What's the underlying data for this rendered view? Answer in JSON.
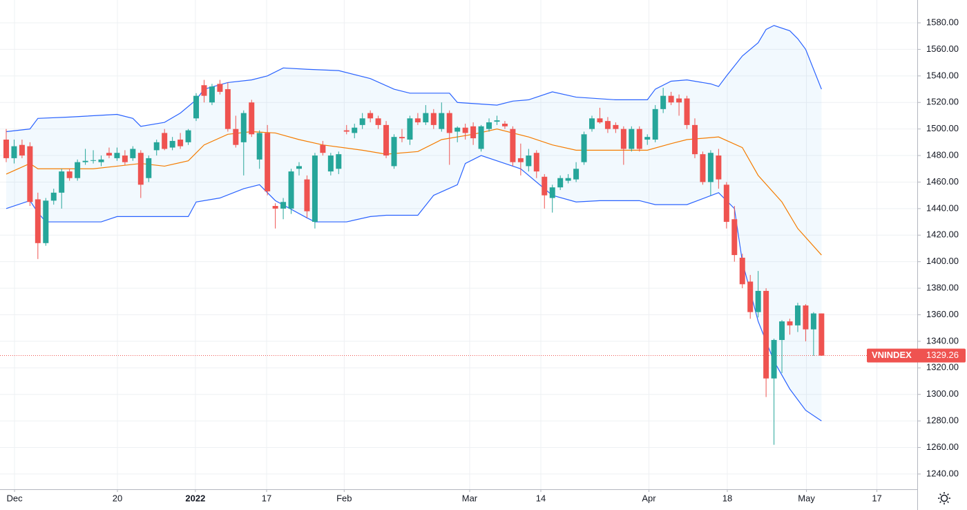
{
  "chart_data": {
    "type": "candlestick",
    "up_color": "#26a69a",
    "down_color": "#ef5350",
    "grid": true,
    "xlim": [
      -0.785,
      115.1
    ],
    "xticks": [
      {
        "value": 1.05,
        "label": "Dec"
      },
      {
        "value": 14.05,
        "label": "20"
      },
      {
        "value": 23.9,
        "label": "2022"
      },
      {
        "value": 32.9,
        "label": "17"
      },
      {
        "value": 42.7,
        "label": "Feb"
      },
      {
        "value": 58.55,
        "label": "Mar"
      },
      {
        "value": 67.54,
        "label": "14"
      },
      {
        "value": 81.2,
        "label": "Apr"
      },
      {
        "value": 91.1,
        "label": "18"
      },
      {
        "value": 101.1,
        "label": "May"
      },
      {
        "value": 110.0,
        "label": "17"
      }
    ],
    "ylim": [
      1228.5,
      1597.2
    ],
    "yticks": [
      {
        "value": 1240,
        "label": "1240.00"
      },
      {
        "value": 1260,
        "label": "1260.00"
      },
      {
        "value": 1280,
        "label": "1280.00"
      },
      {
        "value": 1300,
        "label": "1300.00"
      },
      {
        "value": 1320,
        "label": "1320.00"
      },
      {
        "value": 1340,
        "label": "1340.00"
      },
      {
        "value": 1360,
        "label": "1360.00"
      },
      {
        "value": 1380,
        "label": "1380.00"
      },
      {
        "value": 1400,
        "label": "1400.00"
      },
      {
        "value": 1420,
        "label": "1420.00"
      },
      {
        "value": 1440,
        "label": "1440.00"
      },
      {
        "value": 1460,
        "label": "1460.00"
      },
      {
        "value": 1480,
        "label": "1480.00"
      },
      {
        "value": 1500,
        "label": "1500.00"
      },
      {
        "value": 1520,
        "label": "1520.00"
      },
      {
        "value": 1540,
        "label": "1540.00"
      },
      {
        "value": 1560,
        "label": "1560.00"
      },
      {
        "value": 1580,
        "label": "1580.00"
      }
    ],
    "ohlc": [
      [
        1492,
        1500,
        1475,
        1478
      ],
      [
        1478,
        1492,
        1474,
        1487
      ],
      [
        1488,
        1492,
        1478,
        1480
      ],
      [
        1487,
        1490,
        1442,
        1445
      ],
      [
        1447,
        1452,
        1402,
        1414
      ],
      [
        1414,
        1448,
        1412,
        1446
      ],
      [
        1446,
        1455,
        1443,
        1452
      ],
      [
        1452,
        1470,
        1440,
        1468
      ],
      [
        1468,
        1470,
        1461,
        1463
      ],
      [
        1463,
        1477,
        1461,
        1475
      ],
      [
        1475,
        1485,
        1473,
        1476
      ],
      [
        1476,
        1484,
        1474,
        1476.5
      ],
      [
        1475,
        1480,
        1472,
        1477
      ],
      [
        1482,
        1486,
        1478,
        1480
      ],
      [
        1478,
        1486,
        1476,
        1482
      ],
      [
        1480,
        1484,
        1473,
        1475
      ],
      [
        1478,
        1487,
        1476,
        1485
      ],
      [
        1482,
        1484,
        1448,
        1458
      ],
      [
        1463,
        1480,
        1460,
        1478
      ],
      [
        1484,
        1492,
        1480,
        1490
      ],
      [
        1497,
        1500,
        1484,
        1485
      ],
      [
        1486,
        1494,
        1484,
        1491
      ],
      [
        1492,
        1497,
        1485,
        1487
      ],
      [
        1490,
        1500,
        1488,
        1499
      ],
      [
        1508,
        1527,
        1506,
        1525
      ],
      [
        1533,
        1537,
        1520,
        1525
      ],
      [
        1520,
        1534,
        1518,
        1532
      ],
      [
        1534,
        1537,
        1526,
        1528
      ],
      [
        1530,
        1535,
        1498,
        1500
      ],
      [
        1500,
        1510,
        1486,
        1488
      ],
      [
        1490,
        1514,
        1465,
        1512
      ],
      [
        1520,
        1522,
        1494,
        1496
      ],
      [
        1477,
        1499,
        1470,
        1497
      ],
      [
        1497,
        1503,
        1450,
        1453
      ],
      [
        1442,
        1444,
        1425,
        1440
      ],
      [
        1440,
        1448,
        1432,
        1445
      ],
      [
        1440,
        1470,
        1436,
        1468
      ],
      [
        1470,
        1475,
        1465,
        1472
      ],
      [
        1462,
        1465,
        1433,
        1438
      ],
      [
        1430,
        1482,
        1425,
        1480
      ],
      [
        1488,
        1491,
        1480,
        1482
      ],
      [
        1468,
        1482,
        1465,
        1480
      ],
      [
        1470,
        1483,
        1466,
        1481
      ],
      [
        1499,
        1503,
        1496,
        1498
      ],
      [
        1497,
        1504,
        1493,
        1501
      ],
      [
        1503,
        1512,
        1500,
        1508
      ],
      [
        1512,
        1514,
        1505,
        1508
      ],
      [
        1508,
        1510,
        1500,
        1503
      ],
      [
        1503,
        1506,
        1478,
        1480
      ],
      [
        1472,
        1496,
        1470,
        1494
      ],
      [
        1494,
        1500,
        1490,
        1493
      ],
      [
        1492,
        1510,
        1488,
        1508
      ],
      [
        1508,
        1512,
        1503,
        1505
      ],
      [
        1505,
        1518,
        1503,
        1512
      ],
      [
        1512,
        1515,
        1500,
        1503
      ],
      [
        1500,
        1520,
        1498,
        1512
      ],
      [
        1512,
        1514,
        1473,
        1497
      ],
      [
        1498,
        1502,
        1490,
        1501
      ],
      [
        1501,
        1504,
        1492,
        1497
      ],
      [
        1502,
        1505,
        1488,
        1493
      ],
      [
        1485,
        1503,
        1483,
        1502
      ],
      [
        1500,
        1508,
        1498,
        1505
      ],
      [
        1505.5,
        1510,
        1503,
        1506.5
      ],
      [
        1504,
        1506,
        1500,
        1502
      ],
      [
        1500,
        1502,
        1472,
        1475
      ],
      [
        1478,
        1489,
        1465,
        1475
      ],
      [
        1472,
        1485,
        1468,
        1480
      ],
      [
        1482,
        1484,
        1463,
        1468
      ],
      [
        1464,
        1466,
        1440,
        1450
      ],
      [
        1448,
        1458,
        1437,
        1456
      ],
      [
        1456,
        1465,
        1454,
        1463
      ],
      [
        1461,
        1466,
        1459,
        1463
      ],
      [
        1462,
        1475,
        1460,
        1470
      ],
      [
        1475,
        1498,
        1473,
        1496
      ],
      [
        1500,
        1510,
        1498,
        1508
      ],
      [
        1508,
        1516,
        1504,
        1505
      ],
      [
        1506,
        1509,
        1497,
        1500
      ],
      [
        1503,
        1505,
        1497,
        1500
      ],
      [
        1500,
        1502,
        1473,
        1485
      ],
      [
        1485,
        1502,
        1483,
        1500
      ],
      [
        1500,
        1502,
        1483,
        1485
      ],
      [
        1492,
        1496,
        1488,
        1494
      ],
      [
        1492,
        1518,
        1490,
        1515
      ],
      [
        1515,
        1531,
        1512,
        1525
      ],
      [
        1525,
        1528,
        1518,
        1520
      ],
      [
        1523,
        1526,
        1510,
        1520
      ],
      [
        1523,
        1525,
        1500,
        1503
      ],
      [
        1503,
        1508,
        1478,
        1481
      ],
      [
        1481,
        1483,
        1458,
        1460
      ],
      [
        1460,
        1484,
        1450,
        1482
      ],
      [
        1480,
        1485,
        1455,
        1462
      ],
      [
        1458,
        1460,
        1425,
        1430
      ],
      [
        1432,
        1442,
        1400,
        1405
      ],
      [
        1403,
        1406,
        1380,
        1383
      ],
      [
        1385,
        1390,
        1357,
        1362
      ],
      [
        1362,
        1393,
        1358,
        1378
      ],
      [
        1378,
        1380,
        1298,
        1312
      ],
      [
        1312,
        1342,
        1262,
        1341
      ],
      [
        1341,
        1356,
        1316,
        1355
      ],
      [
        1355,
        1357,
        1345,
        1352
      ],
      [
        1352,
        1369,
        1347,
        1367
      ],
      [
        1367,
        1368,
        1340,
        1349
      ],
      [
        1349,
        1362,
        1329,
        1361
      ],
      [
        1361,
        1361,
        1329,
        1329.26
      ]
    ],
    "bands": [
      {
        "name": "upper",
        "color": "#2962ff",
        "x": [
          0,
          3,
          4,
          8,
          14,
          16,
          17,
          20,
          22,
          24,
          25,
          28,
          31,
          33,
          35,
          38,
          42,
          46,
          49,
          51,
          56,
          57,
          62,
          64,
          66,
          69,
          72,
          77,
          81,
          82,
          84,
          86,
          89,
          90,
          91,
          93,
          95,
          96,
          97,
          99,
          100,
          101,
          103
        ],
        "values": [
          1498,
          1500,
          1508,
          1509,
          1511,
          1508,
          1502,
          1505,
          1512,
          1522,
          1530,
          1535,
          1537,
          1540,
          1546,
          1545,
          1544,
          1538,
          1530,
          1527,
          1527,
          1520,
          1518,
          1521,
          1522,
          1528,
          1524,
          1522,
          1522,
          1530,
          1536,
          1537,
          1534,
          1532,
          1540,
          1555,
          1565,
          1575,
          1578,
          1574,
          1568,
          1560,
          1530
        ]
      },
      {
        "name": "basis",
        "color": "#f57c00",
        "x": [
          0,
          3,
          4,
          11,
          14,
          17,
          20,
          23,
          25,
          28,
          31,
          34,
          37,
          40,
          45,
          48,
          52,
          55,
          59,
          62,
          66,
          69,
          72,
          76,
          81,
          84,
          86,
          90,
          93,
          95,
          98,
          100,
          103
        ],
        "values": [
          1466,
          1474,
          1470,
          1470,
          1472,
          1474,
          1472,
          1476,
          1488,
          1496,
          1498,
          1497,
          1492,
          1488,
          1484,
          1481,
          1483,
          1492,
          1496,
          1500,
          1494,
          1488,
          1484,
          1484,
          1484,
          1489,
          1492,
          1494,
          1486,
          1465,
          1445,
          1425,
          1405
        ]
      },
      {
        "name": "lower",
        "color": "#2962ff",
        "x": [
          0,
          3,
          4,
          5,
          12,
          14,
          20,
          23,
          24,
          27,
          30,
          32,
          34,
          38,
          39,
          43,
          46,
          48,
          52,
          54,
          57,
          58,
          60,
          63,
          65,
          69,
          72,
          75,
          80,
          82,
          86,
          90,
          92,
          93,
          95,
          97,
          99,
          101,
          103
        ],
        "values": [
          1440,
          1446,
          1437,
          1430,
          1430,
          1434,
          1434,
          1434,
          1445,
          1448,
          1455,
          1458,
          1446,
          1433,
          1430,
          1430,
          1434,
          1435,
          1435,
          1450,
          1458,
          1474,
          1480,
          1474,
          1470,
          1450,
          1445,
          1446,
          1446,
          1443,
          1443,
          1452,
          1440,
          1400,
          1355,
          1325,
          1304,
          1288,
          1280
        ]
      }
    ],
    "last_price": {
      "label": "VNINDEX",
      "value": 1329.26
    }
  }
}
